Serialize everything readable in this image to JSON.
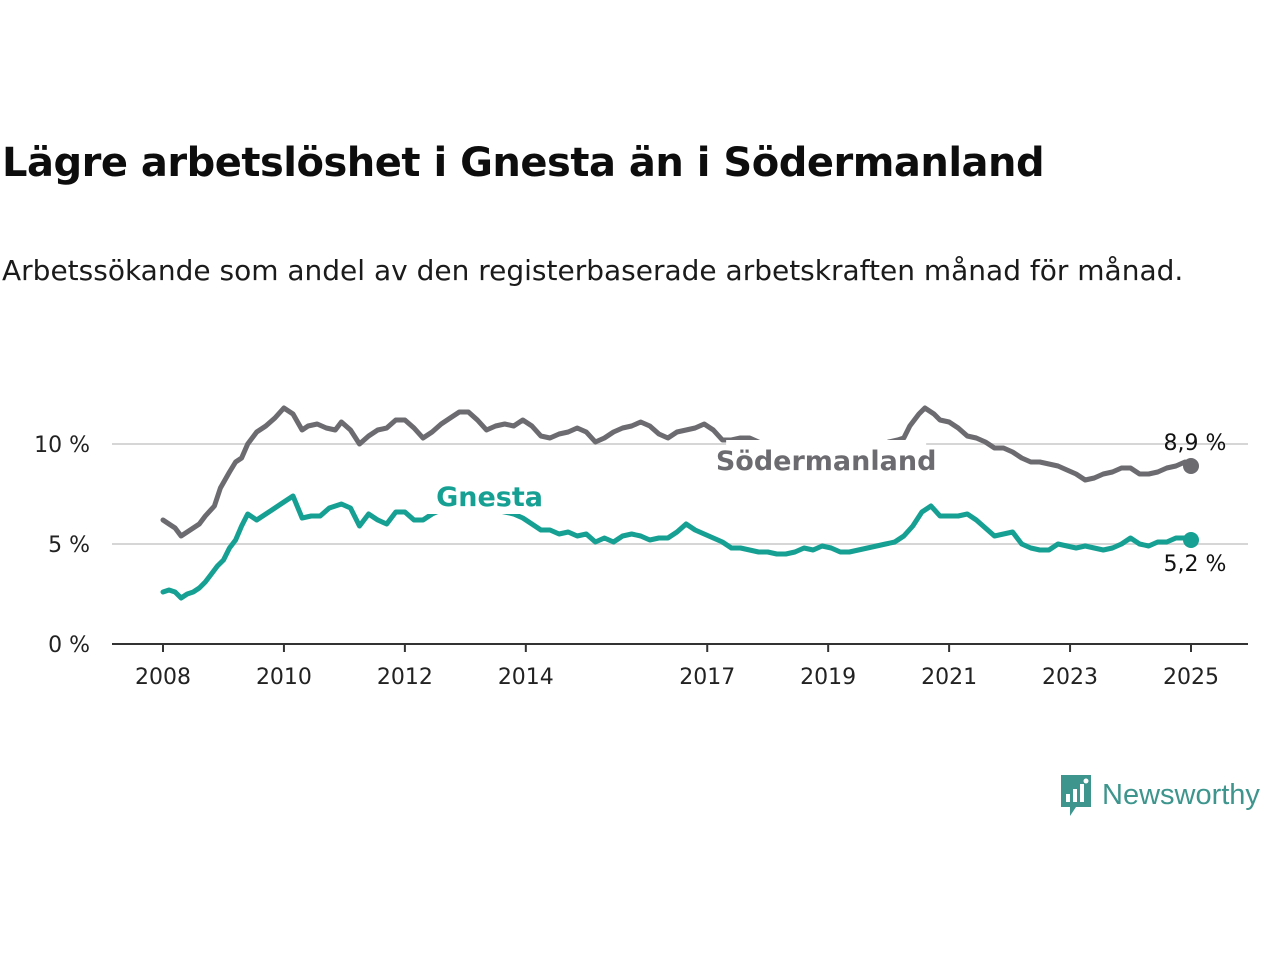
{
  "title": "Lägre arbetslöshet i Gnesta än i Södermanland",
  "subtitle": "Arbetssökande som andel av den registerbaserade arbetskraften månad för månad.",
  "brand": {
    "name": "Newsworthy",
    "color": "#3d958d",
    "icon": "newsworthy-logo-icon"
  },
  "chart_data": {
    "type": "line",
    "x_unit": "year (decimal)",
    "xlim": [
      2008,
      2025.1
    ],
    "ylim": [
      0,
      12
    ],
    "yticks": [
      {
        "value": 0,
        "label": "0 %"
      },
      {
        "value": 5,
        "label": "5 %"
      },
      {
        "value": 10,
        "label": "10 %"
      }
    ],
    "xticks": [
      {
        "value": 2008,
        "label": "2008"
      },
      {
        "value": 2010,
        "label": "2010"
      },
      {
        "value": 2012,
        "label": "2012"
      },
      {
        "value": 2014,
        "label": "2014"
      },
      {
        "value": 2017,
        "label": "2017"
      },
      {
        "value": 2019,
        "label": "2019"
      },
      {
        "value": 2021,
        "label": "2021"
      },
      {
        "value": 2023,
        "label": "2023"
      },
      {
        "value": 2025,
        "label": "2025"
      }
    ],
    "grid": "horizontal",
    "series": [
      {
        "name": "Södermanland",
        "color": "#6c6b70",
        "end_label": "8,9 %",
        "points": [
          [
            2008.0,
            6.2
          ],
          [
            2008.1,
            6.0
          ],
          [
            2008.2,
            5.8
          ],
          [
            2008.3,
            5.4
          ],
          [
            2008.45,
            5.7
          ],
          [
            2008.6,
            6.0
          ],
          [
            2008.7,
            6.4
          ],
          [
            2008.85,
            6.9
          ],
          [
            2008.95,
            7.8
          ],
          [
            2009.1,
            8.6
          ],
          [
            2009.2,
            9.1
          ],
          [
            2009.3,
            9.3
          ],
          [
            2009.4,
            10.0
          ],
          [
            2009.55,
            10.6
          ],
          [
            2009.7,
            10.9
          ],
          [
            2009.85,
            11.3
          ],
          [
            2010.0,
            11.8
          ],
          [
            2010.15,
            11.5
          ],
          [
            2010.3,
            10.7
          ],
          [
            2010.4,
            10.9
          ],
          [
            2010.55,
            11.0
          ],
          [
            2010.7,
            10.8
          ],
          [
            2010.85,
            10.7
          ],
          [
            2010.95,
            11.1
          ],
          [
            2011.1,
            10.7
          ],
          [
            2011.25,
            10.0
          ],
          [
            2011.4,
            10.4
          ],
          [
            2011.55,
            10.7
          ],
          [
            2011.7,
            10.8
          ],
          [
            2011.85,
            11.2
          ],
          [
            2012.0,
            11.2
          ],
          [
            2012.15,
            10.8
          ],
          [
            2012.3,
            10.3
          ],
          [
            2012.45,
            10.6
          ],
          [
            2012.6,
            11.0
          ],
          [
            2012.75,
            11.3
          ],
          [
            2012.9,
            11.6
          ],
          [
            2013.05,
            11.6
          ],
          [
            2013.2,
            11.2
          ],
          [
            2013.35,
            10.7
          ],
          [
            2013.5,
            10.9
          ],
          [
            2013.65,
            11.0
          ],
          [
            2013.8,
            10.9
          ],
          [
            2013.95,
            11.2
          ],
          [
            2014.1,
            10.9
          ],
          [
            2014.25,
            10.4
          ],
          [
            2014.4,
            10.3
          ],
          [
            2014.55,
            10.5
          ],
          [
            2014.7,
            10.6
          ],
          [
            2014.85,
            10.8
          ],
          [
            2015.0,
            10.6
          ],
          [
            2015.15,
            10.1
          ],
          [
            2015.3,
            10.3
          ],
          [
            2015.45,
            10.6
          ],
          [
            2015.6,
            10.8
          ],
          [
            2015.75,
            10.9
          ],
          [
            2015.9,
            11.1
          ],
          [
            2016.05,
            10.9
          ],
          [
            2016.2,
            10.5
          ],
          [
            2016.35,
            10.3
          ],
          [
            2016.5,
            10.6
          ],
          [
            2016.65,
            10.7
          ],
          [
            2016.8,
            10.8
          ],
          [
            2016.95,
            11.0
          ],
          [
            2017.1,
            10.7
          ],
          [
            2017.25,
            10.2
          ],
          [
            2017.4,
            10.2
          ],
          [
            2017.55,
            10.3
          ],
          [
            2017.7,
            10.3
          ],
          [
            2017.85,
            10.1
          ],
          [
            2017.95,
            9.9
          ],
          [
            2018.1,
            9.4
          ],
          [
            2018.3,
            9.2
          ],
          [
            2018.5,
            9.0
          ],
          [
            2018.7,
            8.9
          ],
          [
            2018.9,
            8.9
          ],
          [
            2019.1,
            9.0
          ],
          [
            2019.3,
            9.1
          ],
          [
            2019.5,
            9.3
          ],
          [
            2019.65,
            9.4
          ],
          [
            2019.75,
            9.7
          ],
          [
            2019.9,
            9.9
          ],
          [
            2020.0,
            10.1
          ],
          [
            2020.15,
            10.2
          ],
          [
            2020.25,
            10.3
          ],
          [
            2020.35,
            10.9
          ],
          [
            2020.5,
            11.5
          ],
          [
            2020.6,
            11.8
          ],
          [
            2020.75,
            11.5
          ],
          [
            2020.85,
            11.2
          ],
          [
            2021.0,
            11.1
          ],
          [
            2021.15,
            10.8
          ],
          [
            2021.3,
            10.4
          ],
          [
            2021.45,
            10.3
          ],
          [
            2021.6,
            10.1
          ],
          [
            2021.75,
            9.8
          ],
          [
            2021.9,
            9.8
          ],
          [
            2022.05,
            9.6
          ],
          [
            2022.2,
            9.3
          ],
          [
            2022.35,
            9.1
          ],
          [
            2022.5,
            9.1
          ],
          [
            2022.65,
            9.0
          ],
          [
            2022.8,
            8.9
          ],
          [
            2022.95,
            8.7
          ],
          [
            2023.1,
            8.5
          ],
          [
            2023.25,
            8.2
          ],
          [
            2023.4,
            8.3
          ],
          [
            2023.55,
            8.5
          ],
          [
            2023.7,
            8.6
          ],
          [
            2023.85,
            8.8
          ],
          [
            2024.0,
            8.8
          ],
          [
            2024.15,
            8.5
          ],
          [
            2024.3,
            8.5
          ],
          [
            2024.45,
            8.6
          ],
          [
            2024.6,
            8.8
          ],
          [
            2024.75,
            8.9
          ],
          [
            2024.9,
            9.1
          ],
          [
            2025.0,
            8.9
          ]
        ]
      },
      {
        "name": "Gnesta",
        "color": "#15a093",
        "end_label": "5,2 %",
        "points": [
          [
            2008.0,
            2.6
          ],
          [
            2008.1,
            2.7
          ],
          [
            2008.2,
            2.6
          ],
          [
            2008.3,
            2.3
          ],
          [
            2008.4,
            2.5
          ],
          [
            2008.5,
            2.6
          ],
          [
            2008.6,
            2.8
          ],
          [
            2008.7,
            3.1
          ],
          [
            2008.8,
            3.5
          ],
          [
            2008.9,
            3.9
          ],
          [
            2009.0,
            4.2
          ],
          [
            2009.1,
            4.8
          ],
          [
            2009.2,
            5.2
          ],
          [
            2009.3,
            5.9
          ],
          [
            2009.4,
            6.5
          ],
          [
            2009.55,
            6.2
          ],
          [
            2009.7,
            6.5
          ],
          [
            2009.85,
            6.8
          ],
          [
            2010.0,
            7.1
          ],
          [
            2010.15,
            7.4
          ],
          [
            2010.3,
            6.3
          ],
          [
            2010.45,
            6.4
          ],
          [
            2010.6,
            6.4
          ],
          [
            2010.75,
            6.8
          ],
          [
            2010.95,
            7.0
          ],
          [
            2011.1,
            6.8
          ],
          [
            2011.25,
            5.9
          ],
          [
            2011.4,
            6.5
          ],
          [
            2011.55,
            6.2
          ],
          [
            2011.7,
            6.0
          ],
          [
            2011.85,
            6.6
          ],
          [
            2012.0,
            6.6
          ],
          [
            2012.15,
            6.2
          ],
          [
            2012.3,
            6.2
          ],
          [
            2012.45,
            6.5
          ],
          [
            2012.6,
            6.7
          ],
          [
            2012.75,
            7.0
          ],
          [
            2012.9,
            7.1
          ],
          [
            2013.05,
            7.3
          ],
          [
            2013.2,
            7.2
          ],
          [
            2013.35,
            6.9
          ],
          [
            2013.5,
            6.7
          ],
          [
            2013.65,
            6.6
          ],
          [
            2013.8,
            6.5
          ],
          [
            2013.95,
            6.3
          ],
          [
            2014.1,
            6.0
          ],
          [
            2014.25,
            5.7
          ],
          [
            2014.4,
            5.7
          ],
          [
            2014.55,
            5.5
          ],
          [
            2014.7,
            5.6
          ],
          [
            2014.85,
            5.4
          ],
          [
            2015.0,
            5.5
          ],
          [
            2015.15,
            5.1
          ],
          [
            2015.3,
            5.3
          ],
          [
            2015.45,
            5.1
          ],
          [
            2015.6,
            5.4
          ],
          [
            2015.75,
            5.5
          ],
          [
            2015.9,
            5.4
          ],
          [
            2016.05,
            5.2
          ],
          [
            2016.2,
            5.3
          ],
          [
            2016.35,
            5.3
          ],
          [
            2016.5,
            5.6
          ],
          [
            2016.65,
            6.0
          ],
          [
            2016.8,
            5.7
          ],
          [
            2016.95,
            5.5
          ],
          [
            2017.1,
            5.3
          ],
          [
            2017.25,
            5.1
          ],
          [
            2017.4,
            4.8
          ],
          [
            2017.55,
            4.8
          ],
          [
            2017.7,
            4.7
          ],
          [
            2017.85,
            4.6
          ],
          [
            2018.0,
            4.6
          ],
          [
            2018.15,
            4.5
          ],
          [
            2018.3,
            4.5
          ],
          [
            2018.45,
            4.6
          ],
          [
            2018.6,
            4.8
          ],
          [
            2018.75,
            4.7
          ],
          [
            2018.9,
            4.9
          ],
          [
            2019.05,
            4.8
          ],
          [
            2019.2,
            4.6
          ],
          [
            2019.35,
            4.6
          ],
          [
            2019.5,
            4.7
          ],
          [
            2019.65,
            4.8
          ],
          [
            2019.8,
            4.9
          ],
          [
            2019.95,
            5.0
          ],
          [
            2020.1,
            5.1
          ],
          [
            2020.25,
            5.4
          ],
          [
            2020.4,
            5.9
          ],
          [
            2020.55,
            6.6
          ],
          [
            2020.7,
            6.9
          ],
          [
            2020.85,
            6.4
          ],
          [
            2021.0,
            6.4
          ],
          [
            2021.15,
            6.4
          ],
          [
            2021.3,
            6.5
          ],
          [
            2021.45,
            6.2
          ],
          [
            2021.6,
            5.8
          ],
          [
            2021.75,
            5.4
          ],
          [
            2021.9,
            5.5
          ],
          [
            2022.05,
            5.6
          ],
          [
            2022.2,
            5.0
          ],
          [
            2022.35,
            4.8
          ],
          [
            2022.5,
            4.7
          ],
          [
            2022.65,
            4.7
          ],
          [
            2022.8,
            5.0
          ],
          [
            2022.95,
            4.9
          ],
          [
            2023.1,
            4.8
          ],
          [
            2023.25,
            4.9
          ],
          [
            2023.4,
            4.8
          ],
          [
            2023.55,
            4.7
          ],
          [
            2023.7,
            4.8
          ],
          [
            2023.85,
            5.0
          ],
          [
            2024.0,
            5.3
          ],
          [
            2024.15,
            5.0
          ],
          [
            2024.3,
            4.9
          ],
          [
            2024.45,
            5.1
          ],
          [
            2024.6,
            5.1
          ],
          [
            2024.75,
            5.3
          ],
          [
            2024.9,
            5.3
          ],
          [
            2025.0,
            5.2
          ]
        ]
      }
    ]
  }
}
